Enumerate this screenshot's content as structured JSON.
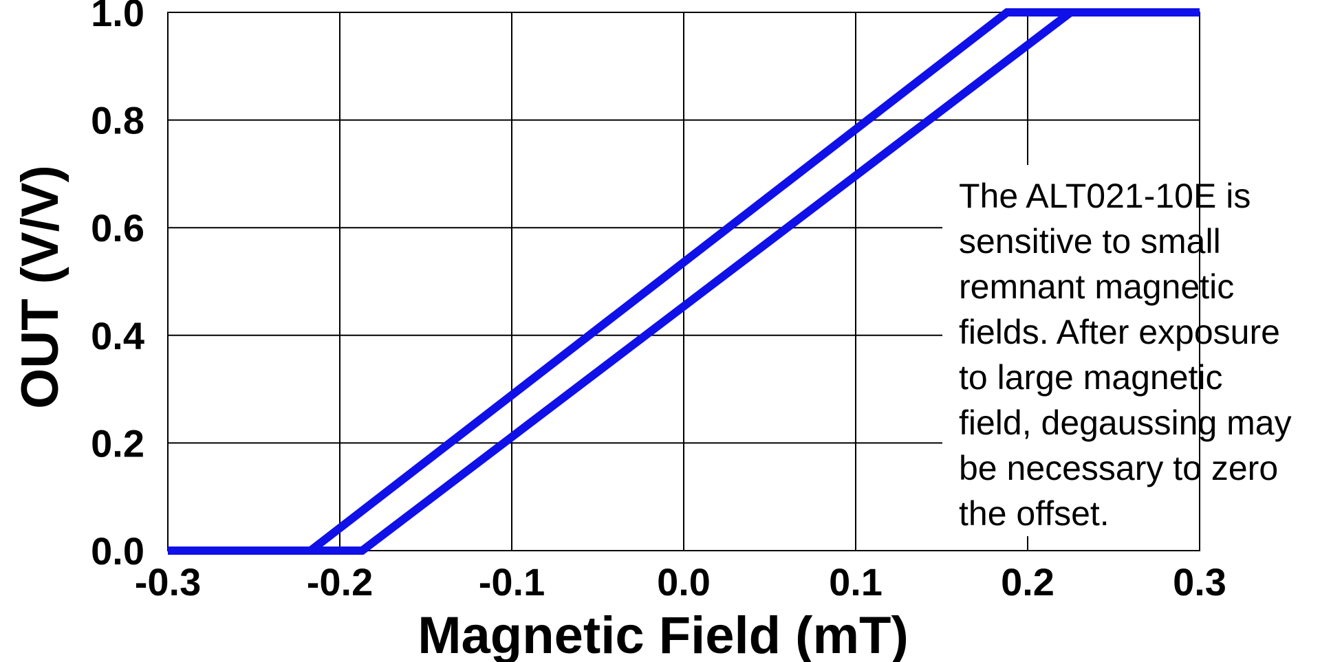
{
  "chart_data": {
    "type": "line",
    "xlabel": "Magnetic Field (mT)",
    "ylabel": "OUT (V/V)",
    "xlim": [
      -0.3,
      0.3
    ],
    "ylim": [
      0.0,
      1.0
    ],
    "x_ticks": [
      "-0.3",
      "-0.2",
      "-0.1",
      "0.0",
      "0.1",
      "0.2",
      "0.3"
    ],
    "y_ticks": [
      "0.0",
      "0.2",
      "0.4",
      "0.6",
      "0.8",
      "1.0"
    ],
    "grid": true,
    "legend": "none",
    "series_color": "#1010e8",
    "series": [
      {
        "x": [
          -0.3,
          -0.217,
          0.188,
          0.3
        ],
        "y": [
          0.0,
          0.0,
          1.0,
          1.0
        ]
      },
      {
        "x": [
          -0.3,
          -0.187,
          0.225,
          0.3
        ],
        "y": [
          0.0,
          0.0,
          1.0,
          1.0
        ]
      }
    ],
    "annotation": [
      "The ALT021-10E is",
      "sensitive to small",
      "remnant magnetic",
      "fields. After exposure",
      "to large magnetic",
      "field, degaussing may",
      "be necessary to zero",
      "the offset."
    ]
  }
}
